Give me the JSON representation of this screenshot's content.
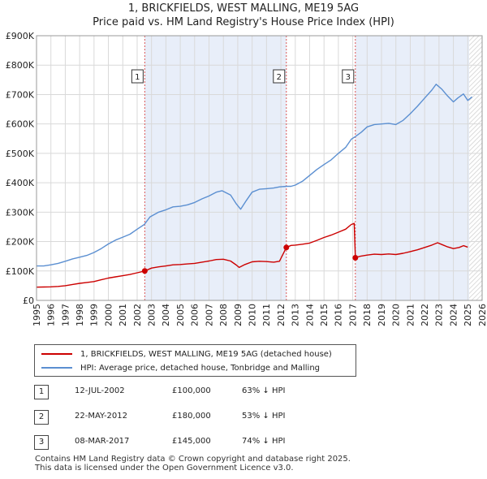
{
  "chart_data": {
    "type": "line",
    "title": "1, BRICKFIELDS, WEST MALLING, ME19 5AG",
    "subtitle": "Price paid vs. HM Land Registry's House Price Index (HPI)",
    "xlim": [
      1995,
      2026
    ],
    "ylim": [
      0,
      900000
    ],
    "xticks": [
      1995,
      1996,
      1997,
      1998,
      1999,
      2000,
      2001,
      2002,
      2003,
      2004,
      2005,
      2006,
      2007,
      2008,
      2009,
      2010,
      2011,
      2012,
      2013,
      2014,
      2015,
      2016,
      2017,
      2018,
      2019,
      2020,
      2021,
      2022,
      2023,
      2024,
      2025,
      2026
    ],
    "yticks": [
      {
        "value": 0,
        "label": "£0"
      },
      {
        "value": 100000,
        "label": "£100K"
      },
      {
        "value": 200000,
        "label": "£200K"
      },
      {
        "value": 300000,
        "label": "£300K"
      },
      {
        "value": 400000,
        "label": "£400K"
      },
      {
        "value": 500000,
        "label": "£500K"
      },
      {
        "value": 600000,
        "label": "£600K"
      },
      {
        "value": 700000,
        "label": "£700K"
      },
      {
        "value": 800000,
        "label": "£800K"
      },
      {
        "value": 900000,
        "label": "£900K"
      }
    ],
    "forecast_start": 2025.1,
    "series": [
      {
        "name": "1, BRICKFIELDS, WEST MALLING, ME19 5AG (detached house)",
        "color": "#cc0000",
        "points": [
          [
            1995.0,
            45000
          ],
          [
            1995.5,
            45500
          ],
          [
            1996.0,
            46000
          ],
          [
            1996.5,
            47500
          ],
          [
            1997.0,
            50000
          ],
          [
            1997.5,
            54000
          ],
          [
            1998.0,
            58000
          ],
          [
            1998.5,
            61000
          ],
          [
            1999.0,
            64000
          ],
          [
            1999.5,
            70000
          ],
          [
            2000.0,
            76000
          ],
          [
            2000.5,
            80000
          ],
          [
            2001.0,
            84000
          ],
          [
            2001.5,
            88000
          ],
          [
            2002.0,
            94000
          ],
          [
            2002.53,
            100000
          ],
          [
            2003.0,
            110000
          ],
          [
            2003.5,
            114000
          ],
          [
            2004.0,
            117000
          ],
          [
            2004.5,
            121000
          ],
          [
            2005.0,
            122000
          ],
          [
            2005.5,
            124000
          ],
          [
            2006.0,
            126000
          ],
          [
            2006.5,
            130000
          ],
          [
            2007.0,
            134000
          ],
          [
            2007.5,
            139000
          ],
          [
            2008.0,
            140000
          ],
          [
            2008.5,
            134000
          ],
          [
            2008.9,
            120000
          ],
          [
            2009.1,
            112000
          ],
          [
            2009.5,
            122000
          ],
          [
            2010.0,
            131000
          ],
          [
            2010.5,
            133000
          ],
          [
            2011.0,
            132000
          ],
          [
            2011.5,
            130000
          ],
          [
            2011.9,
            133000
          ],
          [
            2012.38,
            180000
          ],
          [
            2012.7,
            187000
          ],
          [
            2013.0,
            188000
          ],
          [
            2013.5,
            191000
          ],
          [
            2014.0,
            195000
          ],
          [
            2014.5,
            204000
          ],
          [
            2015.0,
            214000
          ],
          [
            2015.5,
            222000
          ],
          [
            2016.0,
            232000
          ],
          [
            2016.5,
            242000
          ],
          [
            2016.9,
            258000
          ],
          [
            2017.1,
            262000
          ],
          [
            2017.18,
            145000
          ],
          [
            2017.5,
            150000
          ],
          [
            2018.0,
            154000
          ],
          [
            2018.5,
            157000
          ],
          [
            2019.0,
            156000
          ],
          [
            2019.5,
            158000
          ],
          [
            2020.0,
            156000
          ],
          [
            2020.5,
            160000
          ],
          [
            2021.0,
            166000
          ],
          [
            2021.5,
            172000
          ],
          [
            2022.0,
            180000
          ],
          [
            2022.5,
            188000
          ],
          [
            2022.9,
            196000
          ],
          [
            2023.2,
            190000
          ],
          [
            2023.6,
            182000
          ],
          [
            2024.0,
            176000
          ],
          [
            2024.4,
            180000
          ],
          [
            2024.7,
            186000
          ],
          [
            2025.0,
            181000
          ]
        ]
      },
      {
        "name": "HPI: Average price, detached house, Tonbridge and Malling",
        "color": "#5b8fd1",
        "points": [
          [
            1995.0,
            117000
          ],
          [
            1995.5,
            117000
          ],
          [
            1996.0,
            121000
          ],
          [
            1996.5,
            126000
          ],
          [
            1997.0,
            133000
          ],
          [
            1997.5,
            141000
          ],
          [
            1998.0,
            147000
          ],
          [
            1998.5,
            153000
          ],
          [
            1999.0,
            163000
          ],
          [
            1999.5,
            176000
          ],
          [
            2000.0,
            192000
          ],
          [
            2000.5,
            205000
          ],
          [
            2001.0,
            215000
          ],
          [
            2001.5,
            225000
          ],
          [
            2002.0,
            242000
          ],
          [
            2002.5,
            258000
          ],
          [
            2002.9,
            284000
          ],
          [
            2003.5,
            300000
          ],
          [
            2004.0,
            308000
          ],
          [
            2004.5,
            318000
          ],
          [
            2005.0,
            320000
          ],
          [
            2005.5,
            325000
          ],
          [
            2006.0,
            333000
          ],
          [
            2006.5,
            345000
          ],
          [
            2007.0,
            355000
          ],
          [
            2007.5,
            368000
          ],
          [
            2007.9,
            373000
          ],
          [
            2008.5,
            358000
          ],
          [
            2008.9,
            328000
          ],
          [
            2009.2,
            310000
          ],
          [
            2009.6,
            340000
          ],
          [
            2010.0,
            368000
          ],
          [
            2010.5,
            378000
          ],
          [
            2011.0,
            380000
          ],
          [
            2011.5,
            382000
          ],
          [
            2011.9,
            386000
          ],
          [
            2012.4,
            388000
          ],
          [
            2012.7,
            388000
          ],
          [
            2013.0,
            392000
          ],
          [
            2013.5,
            405000
          ],
          [
            2014.0,
            425000
          ],
          [
            2014.5,
            445000
          ],
          [
            2015.0,
            462000
          ],
          [
            2015.5,
            478000
          ],
          [
            2016.0,
            500000
          ],
          [
            2016.5,
            520000
          ],
          [
            2016.9,
            548000
          ],
          [
            2017.2,
            558000
          ],
          [
            2017.6,
            572000
          ],
          [
            2018.0,
            590000
          ],
          [
            2018.5,
            598000
          ],
          [
            2019.0,
            600000
          ],
          [
            2019.5,
            602000
          ],
          [
            2020.0,
            598000
          ],
          [
            2020.5,
            612000
          ],
          [
            2021.0,
            635000
          ],
          [
            2021.5,
            660000
          ],
          [
            2022.0,
            688000
          ],
          [
            2022.5,
            715000
          ],
          [
            2022.8,
            735000
          ],
          [
            2023.2,
            718000
          ],
          [
            2023.6,
            695000
          ],
          [
            2024.0,
            675000
          ],
          [
            2024.3,
            688000
          ],
          [
            2024.7,
            702000
          ],
          [
            2025.0,
            680000
          ],
          [
            2025.3,
            692000
          ]
        ]
      }
    ],
    "annotations": [
      {
        "label": "1",
        "x": 2002.53,
        "value": 100000
      },
      {
        "label": "2",
        "x": 2012.38,
        "value": 180000
      },
      {
        "label": "3",
        "x": 2017.18,
        "value": 145000
      }
    ]
  },
  "legend": [
    {
      "label": "1, BRICKFIELDS, WEST MALLING, ME19 5AG (detached house)",
      "color": "#cc0000"
    },
    {
      "label": "HPI: Average price, detached house, Tonbridge and Malling",
      "color": "#5b8fd1"
    }
  ],
  "sales": [
    {
      "num": "1",
      "date": "12-JUL-2002",
      "price": "£100,000",
      "hpi": "63% ↓ HPI"
    },
    {
      "num": "2",
      "date": "22-MAY-2012",
      "price": "£180,000",
      "hpi": "53% ↓ HPI"
    },
    {
      "num": "3",
      "date": "08-MAR-2017",
      "price": "£145,000",
      "hpi": "74% ↓ HPI"
    }
  ],
  "footer": {
    "line1": "Contains HM Land Registry data © Crown copyright and database right 2025.",
    "line2": "This data is licensed under the Open Government Licence v3.0."
  }
}
